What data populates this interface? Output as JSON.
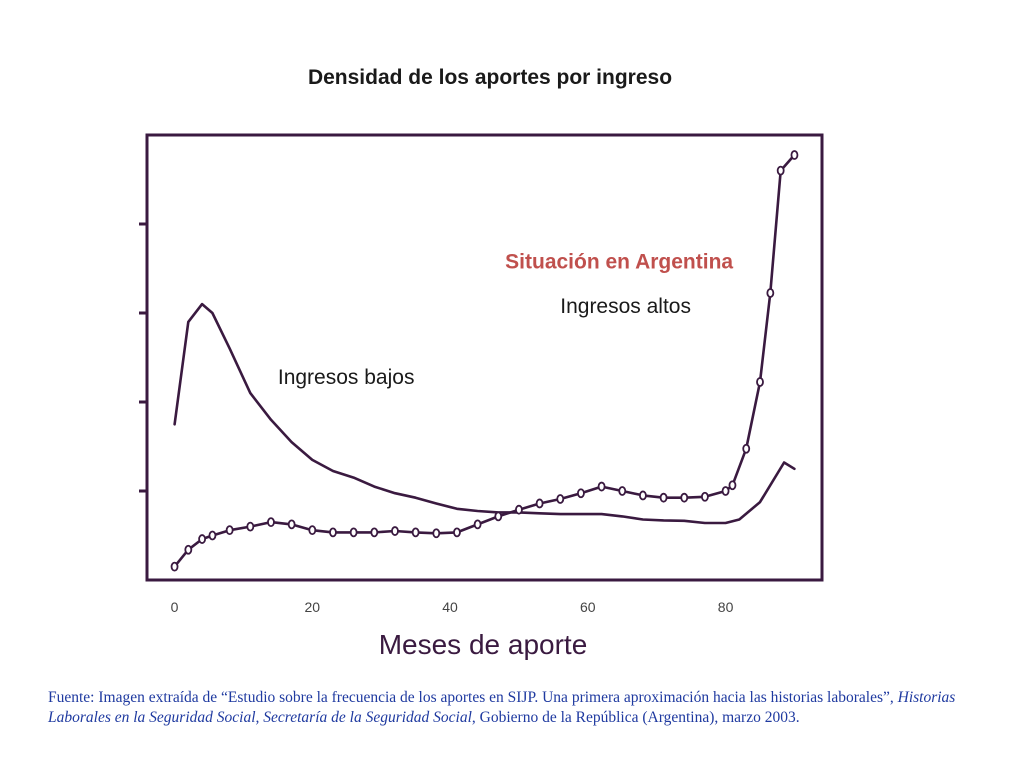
{
  "title": "Densidad de los aportes por ingreso",
  "colors": {
    "axis": "#3a1a40",
    "series": "#3a1a40",
    "annotation": "#c0504d",
    "source_text": "#1f3aa0"
  },
  "chart_data": {
    "type": "line",
    "title": "Densidad de los aportes por ingreso",
    "xlabel": "Meses de aporte",
    "ylabel": "",
    "xlim": [
      -4,
      94
    ],
    "ylim": [
      0,
      10
    ],
    "xticks": [
      "0",
      "20",
      "40",
      "60",
      "80"
    ],
    "yticks_labeled": false,
    "grid": false,
    "annotation_title": "Situación en Argentina",
    "series": [
      {
        "name": "Ingresos bajos",
        "marker": "none",
        "points": [
          [
            0,
            3.5
          ],
          [
            2,
            5.8
          ],
          [
            4,
            6.2
          ],
          [
            5.5,
            6.0
          ],
          [
            8,
            5.2
          ],
          [
            11,
            4.2
          ],
          [
            14,
            3.6
          ],
          [
            17,
            3.1
          ],
          [
            20,
            2.7
          ],
          [
            23,
            2.45
          ],
          [
            26,
            2.3
          ],
          [
            29,
            2.1
          ],
          [
            32,
            1.95
          ],
          [
            35,
            1.85
          ],
          [
            38,
            1.72
          ],
          [
            41,
            1.6
          ],
          [
            44,
            1.55
          ],
          [
            47,
            1.52
          ],
          [
            50,
            1.52
          ],
          [
            53,
            1.5
          ],
          [
            56,
            1.48
          ],
          [
            59,
            1.48
          ],
          [
            62,
            1.48
          ],
          [
            65,
            1.43
          ],
          [
            68,
            1.36
          ],
          [
            71,
            1.34
          ],
          [
            74,
            1.33
          ],
          [
            77,
            1.28
          ],
          [
            80,
            1.28
          ],
          [
            82,
            1.36
          ],
          [
            85,
            1.75
          ],
          [
            88.5,
            2.64
          ],
          [
            90,
            2.5
          ]
        ]
      },
      {
        "name": "Ingresos altos",
        "marker": "circle",
        "points": [
          [
            0,
            0.3
          ],
          [
            2,
            0.68
          ],
          [
            4,
            0.92
          ],
          [
            5.5,
            1.0
          ],
          [
            8,
            1.12
          ],
          [
            11,
            1.2
          ],
          [
            14,
            1.3
          ],
          [
            17,
            1.25
          ],
          [
            20,
            1.12
          ],
          [
            23,
            1.07
          ],
          [
            26,
            1.07
          ],
          [
            29,
            1.07
          ],
          [
            32,
            1.1
          ],
          [
            35,
            1.07
          ],
          [
            38,
            1.05
          ],
          [
            41,
            1.07
          ],
          [
            44,
            1.25
          ],
          [
            47,
            1.43
          ],
          [
            50,
            1.58
          ],
          [
            53,
            1.72
          ],
          [
            56,
            1.82
          ],
          [
            59,
            1.95
          ],
          [
            62,
            2.1
          ],
          [
            65,
            2.0
          ],
          [
            68,
            1.9
          ],
          [
            71,
            1.85
          ],
          [
            74,
            1.85
          ],
          [
            77,
            1.87
          ],
          [
            80,
            2.0
          ],
          [
            81,
            2.13
          ],
          [
            83,
            2.95
          ],
          [
            85,
            4.45
          ],
          [
            86.5,
            6.45
          ],
          [
            88,
            9.2
          ],
          [
            90,
            9.55
          ]
        ]
      }
    ],
    "series_labels": [
      {
        "text": "Ingresos bajos",
        "x": 15,
        "y": 4.4
      },
      {
        "text": "Ingresos altos",
        "x": 56,
        "y": 6.0
      }
    ],
    "annotation_position": {
      "x": 48,
      "y": 7.0
    }
  },
  "source": {
    "prefix": "Fuente: Imagen extraída de “Estudio sobre la frecuencia de los aportes en SIJP. Una primera aproximación hacia las historias laborales”, ",
    "italic": "Historias Laborales en la Seguridad Social, Secretaría de la Seguridad Social",
    "suffix": ", Gobierno de la República (Argentina), marzo 2003."
  }
}
